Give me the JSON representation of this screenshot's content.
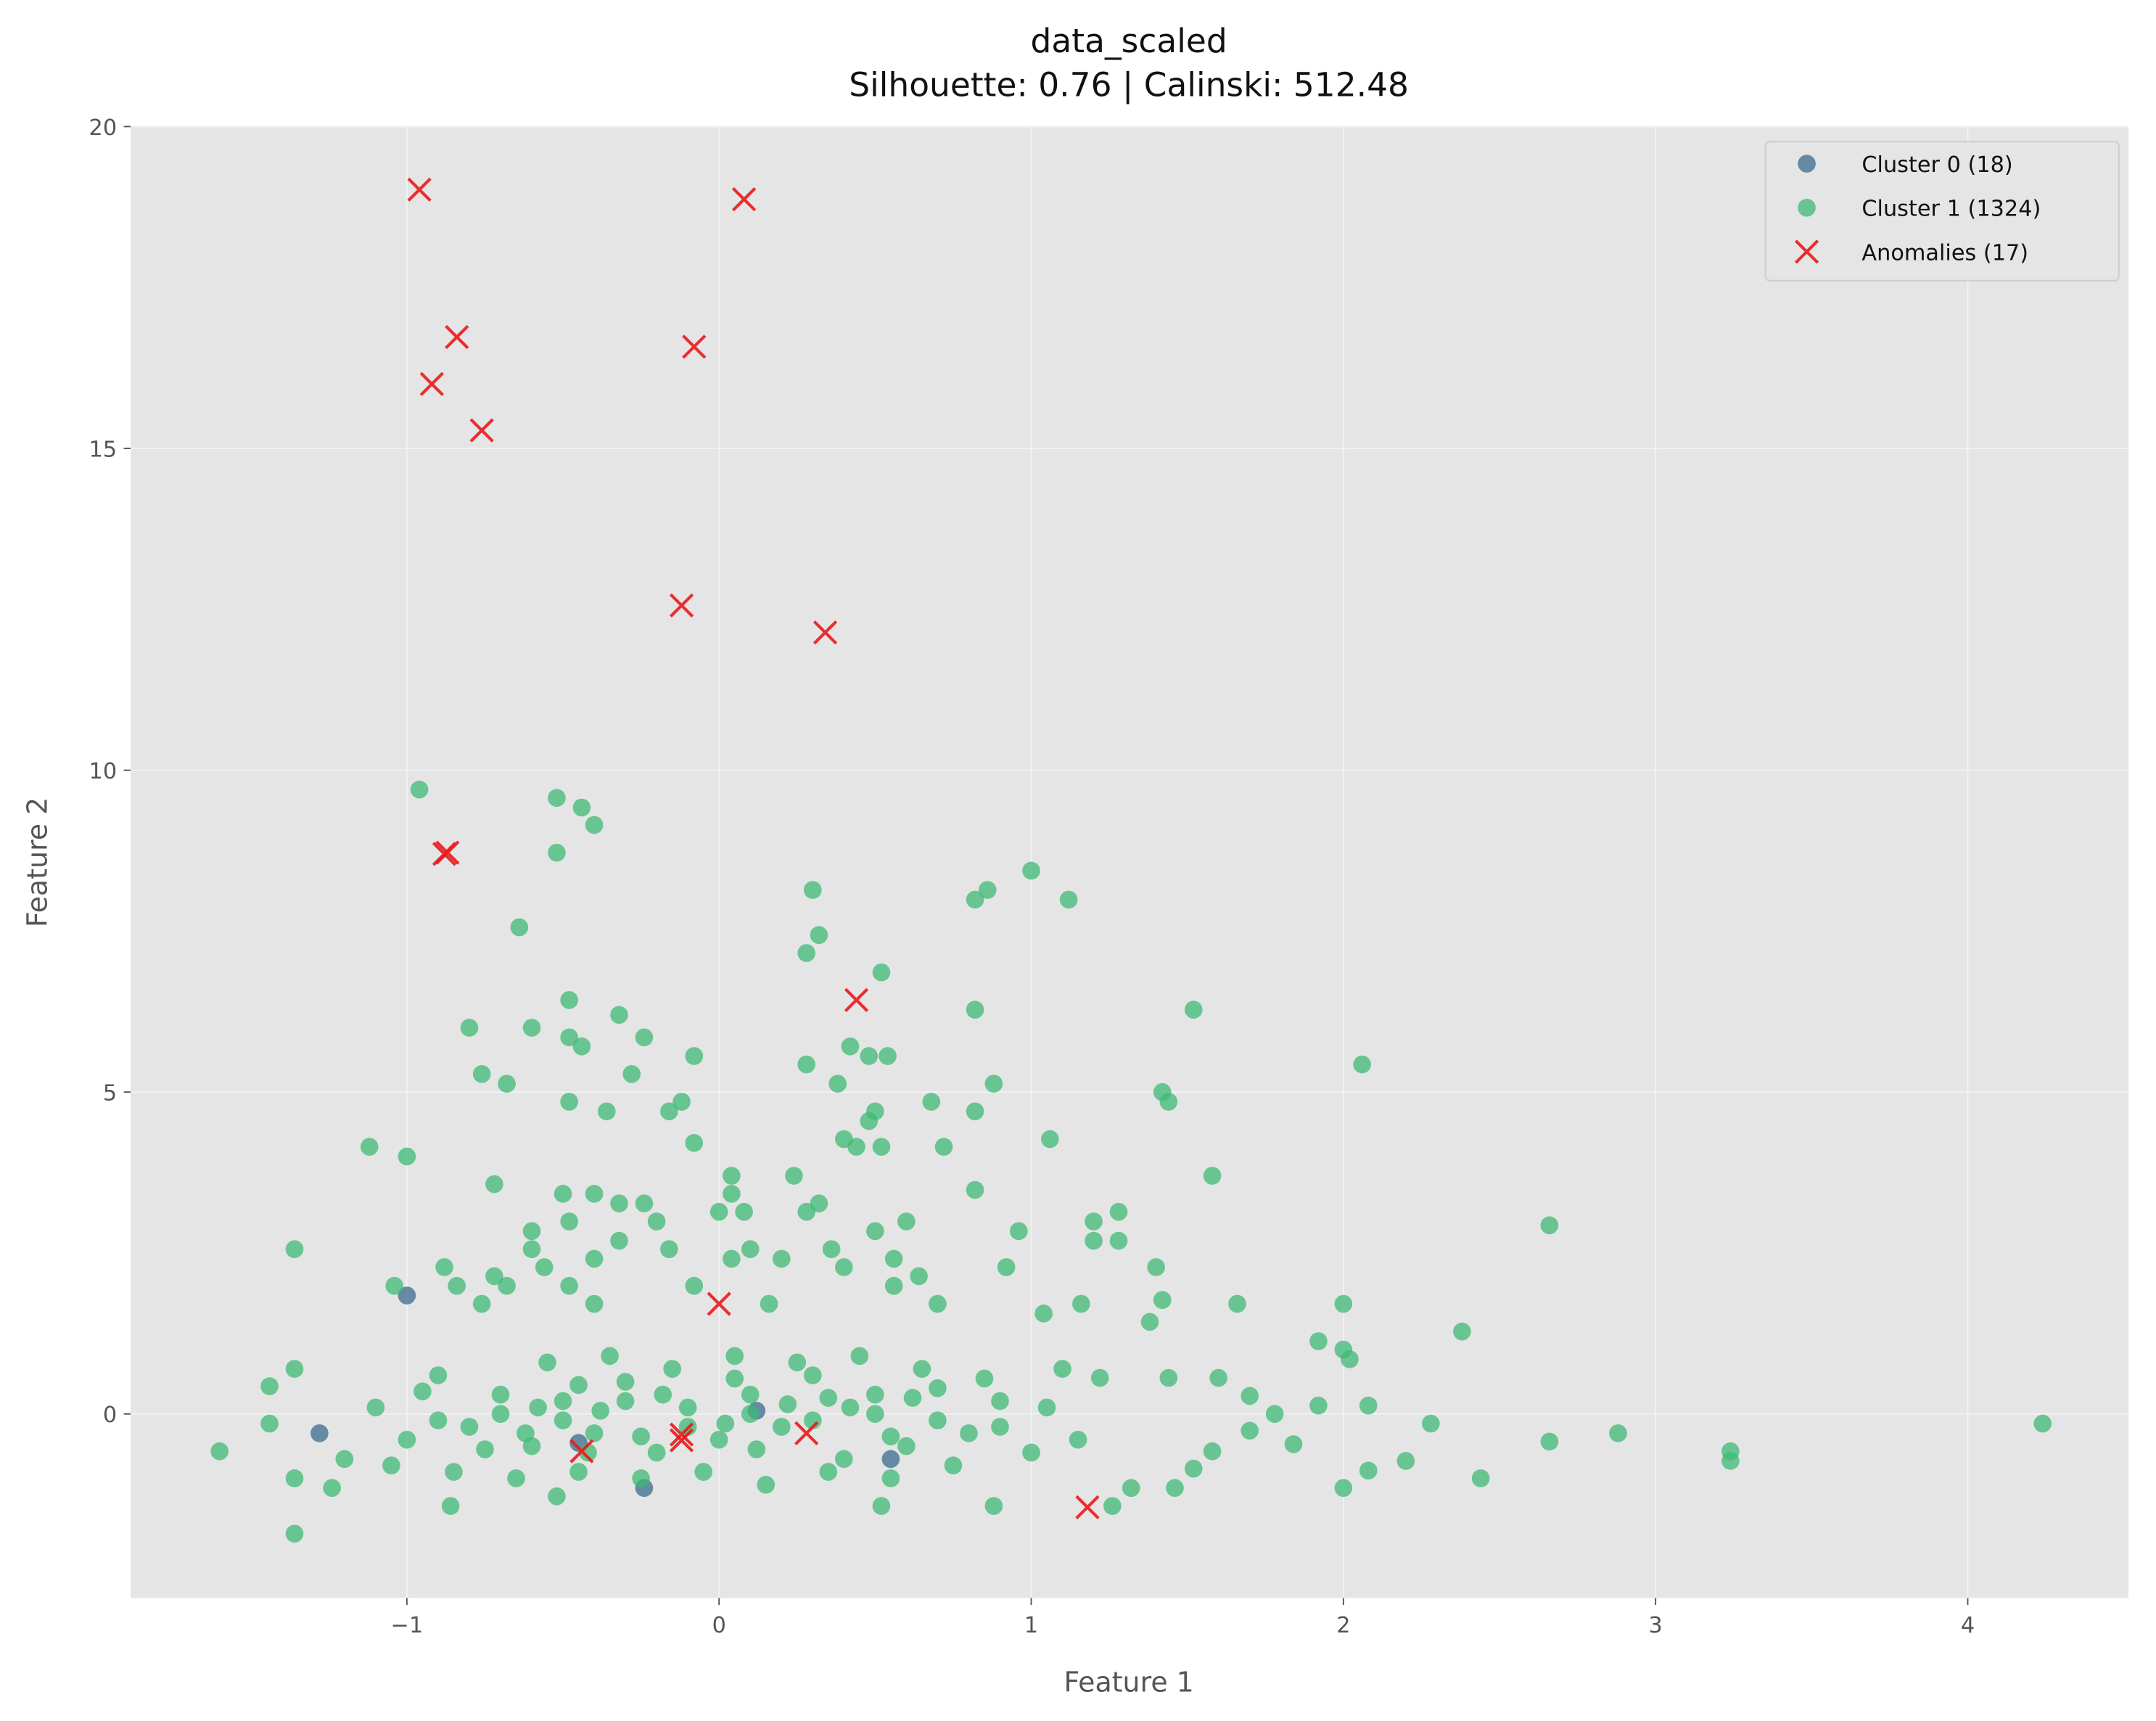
{
  "chart_data": {
    "type": "scatter",
    "title": "data_scaled",
    "subtitle": "Silhouette: 0.76 | Calinski: 512.48",
    "x_label": "Feature 1",
    "y_label": "Feature 2",
    "xlim": [
      -1.885,
      4.515
    ],
    "ylim": [
      -2.86,
      20
    ],
    "xticks": [
      {
        "value": -1,
        "label": "−1"
      },
      0,
      1,
      2,
      3,
      4
    ],
    "yticks": [
      0,
      5,
      10,
      15,
      20
    ],
    "grid": true,
    "legend": "upper right",
    "series": [
      {
        "name": "Cluster 0 (18)",
        "color": "#3b6a8e",
        "marker": "circle",
        "x": [
          -1.0,
          -1.28,
          -0.24,
          0.12,
          -0.45,
          0.55
        ],
        "y": [
          1.84,
          -0.3,
          -1.15,
          0.05,
          -0.45,
          -0.7
        ]
      },
      {
        "name": "Cluster 1 (1324)",
        "color": "#3dba76",
        "marker": "circle",
        "x": [
          -0.96,
          -0.52,
          -0.44,
          -0.4,
          -0.52,
          -0.64,
          0.3,
          1.0,
          0.86,
          0.82,
          1.12,
          0.32,
          0.28,
          0.52,
          0.82,
          1.52,
          -0.48,
          -0.32,
          -0.8,
          -0.6,
          -0.24,
          -0.48,
          -0.44,
          0.42,
          0.54,
          0.48,
          -0.08,
          2.06,
          0.28,
          -0.76,
          -0.28,
          -0.68,
          0.38,
          0.88,
          1.42,
          1.44,
          -0.48,
          -0.12,
          0.68,
          -0.36,
          -0.16,
          0.5,
          0.82,
          0.48,
          1.06,
          0.4,
          -1.12,
          -0.08,
          0.44,
          0.52,
          0.72,
          -1.0,
          0.04,
          0.24,
          1.58,
          0.82,
          -0.72,
          -0.5,
          -0.4,
          0.04,
          -0.32,
          -0.24,
          0.32,
          1.28,
          0.0,
          0.08,
          0.28,
          0.6,
          1.2,
          -0.48,
          -0.2,
          2.66,
          -0.6,
          0.96,
          0.5,
          -0.32,
          1.28,
          1.2,
          -1.36,
          -0.16,
          0.1,
          0.36,
          -0.6,
          0.2,
          0.04,
          -0.4,
          0.56,
          1.4,
          0.92,
          -0.88,
          -0.56,
          0.4,
          0.64,
          -0.72,
          -0.48,
          -1.04,
          -0.84,
          0.56,
          -0.08,
          -0.68,
          1.42,
          1.66,
          2.0,
          1.16,
          0.7,
          -0.76,
          -0.4,
          0.16,
          1.04,
          1.38,
          2.38,
          1.92,
          2.0,
          2.02,
          2.88,
          3.24,
          3.24,
          4.24,
          2.66,
          2.44,
          2.28,
          2.2,
          2.08,
          2.0,
          2.08,
          1.78,
          -1.6,
          -1.44,
          -1.36,
          -1.36,
          -1.36,
          -1.24,
          -1.44,
          1.26,
          0.88,
          0.52,
          -0.52,
          -0.86,
          1.46,
          1.32,
          1.52,
          1.58,
          1.7,
          1.84,
          1.92,
          1.7,
          1.6,
          1.44,
          1.22,
          1.1,
          -0.5,
          -0.4,
          -0.3,
          -0.2,
          -0.1,
          0.0,
          0.1,
          0.2,
          0.3,
          0.4,
          0.5,
          0.6,
          0.7,
          0.8,
          0.9,
          1.0,
          -0.6,
          -0.7,
          -0.8,
          -0.9,
          -1.0,
          -1.1,
          -1.2,
          -0.55,
          -0.35,
          -0.15,
          0.05,
          0.25,
          0.45,
          0.65,
          -0.45,
          -0.25,
          -0.05,
          0.15,
          0.35,
          0.55,
          0.75,
          -0.65,
          -0.85,
          -1.05,
          -0.5,
          -0.3,
          -0.1,
          0.1,
          0.3,
          0.5,
          -0.7,
          -0.9,
          0.7,
          0.9,
          -0.45,
          -0.25,
          0.05,
          0.35,
          0.55,
          -0.75,
          -0.95,
          0.85,
          1.05,
          1.15,
          -0.58,
          -0.38,
          -0.18,
          0.02,
          0.22,
          0.42,
          0.62,
          -0.62,
          -0.42,
          0.12
        ],
        "y": [
          9.7,
          9.57,
          9.42,
          9.15,
          8.72,
          7.56,
          8.14,
          8.44,
          8.14,
          7.99,
          7.99,
          7.44,
          7.16,
          6.86,
          6.28,
          6.28,
          6.43,
          6.2,
          6.0,
          6.0,
          5.85,
          5.85,
          5.71,
          5.71,
          5.56,
          5.56,
          5.56,
          5.43,
          5.43,
          5.28,
          5.28,
          5.13,
          5.13,
          5.13,
          5.0,
          4.85,
          4.85,
          4.85,
          4.85,
          4.7,
          4.7,
          4.7,
          4.7,
          4.55,
          4.27,
          4.27,
          4.15,
          4.21,
          4.15,
          4.15,
          4.15,
          4.0,
          3.7,
          3.7,
          3.7,
          3.48,
          3.57,
          3.42,
          3.42,
          3.42,
          3.27,
          3.27,
          3.27,
          3.14,
          3.14,
          3.14,
          3.14,
          2.99,
          2.99,
          2.99,
          2.99,
          2.93,
          2.84,
          2.84,
          2.84,
          2.69,
          2.69,
          2.69,
          2.56,
          2.56,
          2.56,
          2.56,
          2.56,
          2.41,
          2.41,
          2.41,
          2.41,
          2.28,
          2.28,
          2.28,
          2.28,
          2.28,
          2.14,
          2.14,
          1.99,
          1.99,
          1.99,
          1.99,
          1.99,
          1.99,
          1.77,
          1.71,
          1.71,
          1.71,
          1.71,
          1.71,
          1.71,
          1.71,
          1.56,
          1.43,
          1.28,
          1.13,
          1.0,
          0.85,
          -0.3,
          -0.58,
          -0.73,
          -0.15,
          -0.43,
          -1.0,
          -0.15,
          -0.73,
          -0.88,
          -1.15,
          0.13,
          0.0,
          -0.58,
          0.43,
          0.7,
          -1.86,
          -1.0,
          -1.15,
          -0.15,
          -1.43,
          -1.43,
          -1.43,
          -1.28,
          -1.43,
          -1.15,
          -1.15,
          -0.85,
          -0.58,
          -0.26,
          -0.47,
          0.13,
          0.28,
          0.56,
          0.56,
          0.56,
          0.7,
          0.2,
          -0.3,
          0.5,
          -0.6,
          0.1,
          -0.4,
          0.3,
          -0.2,
          0.6,
          -0.7,
          0.0,
          -0.5,
          0.4,
          -0.3,
          0.2,
          -0.6,
          -0.5,
          0.3,
          -0.2,
          0.6,
          -0.4,
          0.1,
          -0.7,
          0.8,
          0.9,
          0.7,
          0.9,
          0.8,
          0.9,
          0.7,
          -0.9,
          -1.0,
          -0.9,
          -1.1,
          -0.9,
          -1.0,
          -0.8,
          -1.0,
          -0.9,
          -0.8,
          -0.1,
          0.2,
          -0.2,
          0.0,
          -0.1,
          0.3,
          0.0,
          -0.1,
          -0.1,
          -0.2,
          0.45,
          -0.35,
          0.55,
          0.25,
          -0.35,
          -0.55,
          0.35,
          0.55,
          0.1,
          -0.4,
          0.1,
          0.05,
          0.3,
          -0.15,
          0.15,
          0.1,
          0.25,
          -0.3,
          -0.6,
          -0.55
        ]
      },
      {
        "name": "Anomalies (17)",
        "color": "#e8191c",
        "marker": "x",
        "x": [
          -0.96,
          0.08,
          -0.84,
          -0.08,
          -0.92,
          -0.76,
          -0.12,
          0.34,
          -0.88,
          -0.87,
          0.44,
          0.0,
          -0.12,
          -0.12,
          -0.44,
          0.28,
          1.18
        ],
        "y": [
          19.02,
          18.87,
          16.73,
          16.58,
          16.0,
          15.28,
          12.56,
          12.14,
          8.7,
          8.72,
          6.43,
          1.71,
          -0.32,
          -0.41,
          -0.58,
          -0.3,
          -1.45
        ]
      }
    ]
  }
}
